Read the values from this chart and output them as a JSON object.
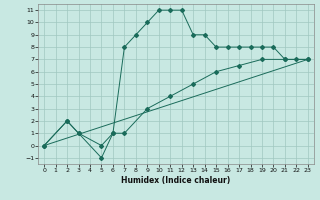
{
  "xlabel": "Humidex (Indice chaleur)",
  "bg_color": "#c8e8e2",
  "grid_color": "#a0c8c0",
  "line_color": "#1a6b5a",
  "xlim": [
    -0.5,
    23.5
  ],
  "ylim": [
    -1.5,
    11.5
  ],
  "xticks": [
    0,
    1,
    2,
    3,
    4,
    5,
    6,
    7,
    8,
    9,
    10,
    11,
    12,
    13,
    14,
    15,
    16,
    17,
    18,
    19,
    20,
    21,
    22,
    23
  ],
  "yticks": [
    -1,
    0,
    1,
    2,
    3,
    4,
    5,
    6,
    7,
    8,
    9,
    10,
    11
  ],
  "curve1_x": [
    0,
    2,
    3,
    5,
    6,
    7,
    8,
    9,
    10,
    11,
    12,
    13,
    14,
    15,
    16,
    17,
    18,
    19,
    20,
    21,
    22,
    23
  ],
  "curve1_y": [
    0,
    2,
    1,
    0,
    1,
    8,
    9,
    10,
    11,
    11,
    11,
    9,
    9,
    8,
    8,
    8,
    8,
    8,
    8,
    7,
    7,
    7
  ],
  "curve2_x": [
    0,
    2,
    3,
    5,
    6,
    7,
    9,
    11,
    13,
    15,
    17,
    19,
    21,
    23
  ],
  "curve2_y": [
    0,
    2,
    1,
    -1,
    1,
    1,
    3,
    4,
    5,
    6,
    6.5,
    7,
    7,
    7
  ],
  "curve3_x": [
    0,
    23
  ],
  "curve3_y": [
    0,
    7
  ],
  "figw": 3.2,
  "figh": 2.0,
  "dpi": 100
}
